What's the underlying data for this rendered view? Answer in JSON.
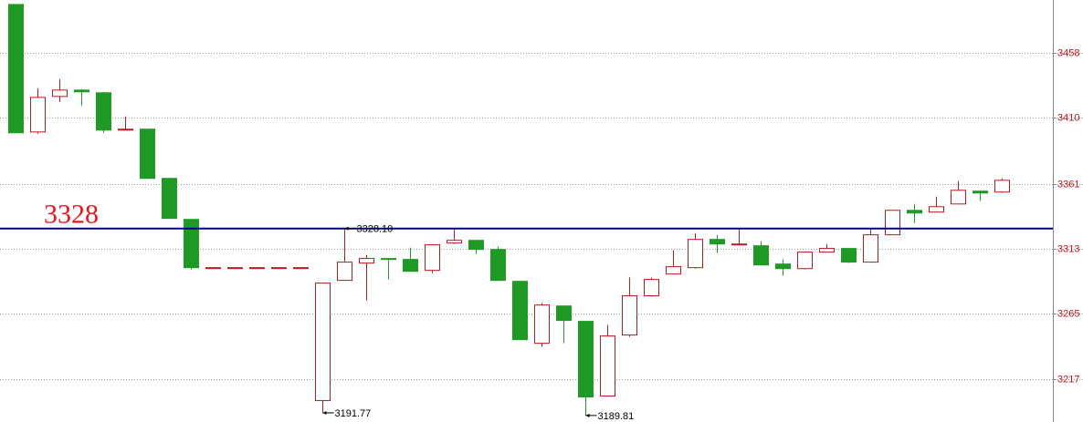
{
  "chart_data": {
    "type": "candlestick",
    "ylim": [
      3185,
      3497
    ],
    "yticks": [
      3217,
      3265,
      3313,
      3361,
      3410,
      3458
    ],
    "grid": true,
    "up_color": "#c0141e",
    "down_color": "#1f9a24",
    "series": {
      "open": [
        3493.7,
        3399.4,
        3425.7,
        3430.4,
        3428.4,
        3400.8,
        3401.5,
        3365.1,
        3334.8,
        3299.1,
        3299.1,
        3299.1,
        3299.1,
        3299.1,
        3200.8,
        3289.7,
        3302.5,
        3305.9,
        3305.2,
        3297.1,
        3317.3,
        3319.3,
        3312.6,
        3289.0,
        3243.2,
        3270.8,
        3259.4,
        3204.2,
        3249.3,
        3278.3,
        3294.4,
        3299.1,
        3320.0,
        3316.0,
        3315.3,
        3301.8,
        3298.4,
        3310.6,
        3313.3,
        3303.2,
        3323.4,
        3341.5,
        3340.2,
        3346.2,
        3355.7,
        3355.0
      ],
      "high": [
        3493.7,
        3431.7,
        3438.5,
        3431.1,
        3429.1,
        3410.9,
        3401.5,
        3365.1,
        3334.8,
        3299.1,
        3299.1,
        3299.1,
        3299.1,
        3299.1,
        3287.7,
        3328.1,
        3308.5,
        3305.9,
        3313.9,
        3316.6,
        3327.4,
        3319.3,
        3314.6,
        3289.0,
        3272.9,
        3270.8,
        3259.4,
        3256.7,
        3291.7,
        3291.7,
        3311.9,
        3324.7,
        3323.4,
        3327.4,
        3318.6,
        3305.2,
        3310.6,
        3316.6,
        3313.3,
        3328.1,
        3341.5,
        3346.2,
        3351.6,
        3363.1,
        3356.3,
        3365.1
      ],
      "low": [
        3398.8,
        3398.1,
        3421.6,
        3419.0,
        3398.8,
        3400.8,
        3365.1,
        3335.5,
        3297.8,
        3299.1,
        3299.1,
        3299.1,
        3299.1,
        3299.1,
        3191.77,
        3289.7,
        3274.9,
        3290.4,
        3296.4,
        3295.1,
        3316.6,
        3309.2,
        3289.7,
        3245.9,
        3240.6,
        3243.2,
        3189.81,
        3204.2,
        3248.0,
        3277.6,
        3294.4,
        3298.4,
        3309.9,
        3316.0,
        3301.1,
        3293.1,
        3297.8,
        3310.6,
        3302.5,
        3303.2,
        3323.4,
        3332.1,
        3340.2,
        3346.2,
        3348.3,
        3354.3
      ],
      "close": [
        3398.8,
        3425.0,
        3430.4,
        3429.1,
        3400.8,
        3401.5,
        3365.1,
        3335.5,
        3299.1,
        3299.1,
        3299.1,
        3299.1,
        3299.1,
        3299.1,
        3287.7,
        3303.2,
        3305.9,
        3305.2,
        3296.4,
        3316.0,
        3319.3,
        3312.6,
        3289.7,
        3245.9,
        3271.5,
        3260.1,
        3203.5,
        3248.6,
        3278.3,
        3290.4,
        3299.8,
        3320.0,
        3316.6,
        3316.6,
        3301.1,
        3298.4,
        3310.6,
        3313.3,
        3303.2,
        3323.4,
        3341.5,
        3339.5,
        3344.2,
        3356.3,
        3354.3,
        3363.7
      ]
    },
    "annotations": [
      {
        "value": 3328.1,
        "label": "3328.10"
      },
      {
        "value": 3191.77,
        "label": "3191.77"
      },
      {
        "value": 3189.81,
        "label": "3189.81"
      }
    ],
    "hline": {
      "value": 3328,
      "color": "#00008b",
      "label_color": "#e8141e"
    }
  }
}
